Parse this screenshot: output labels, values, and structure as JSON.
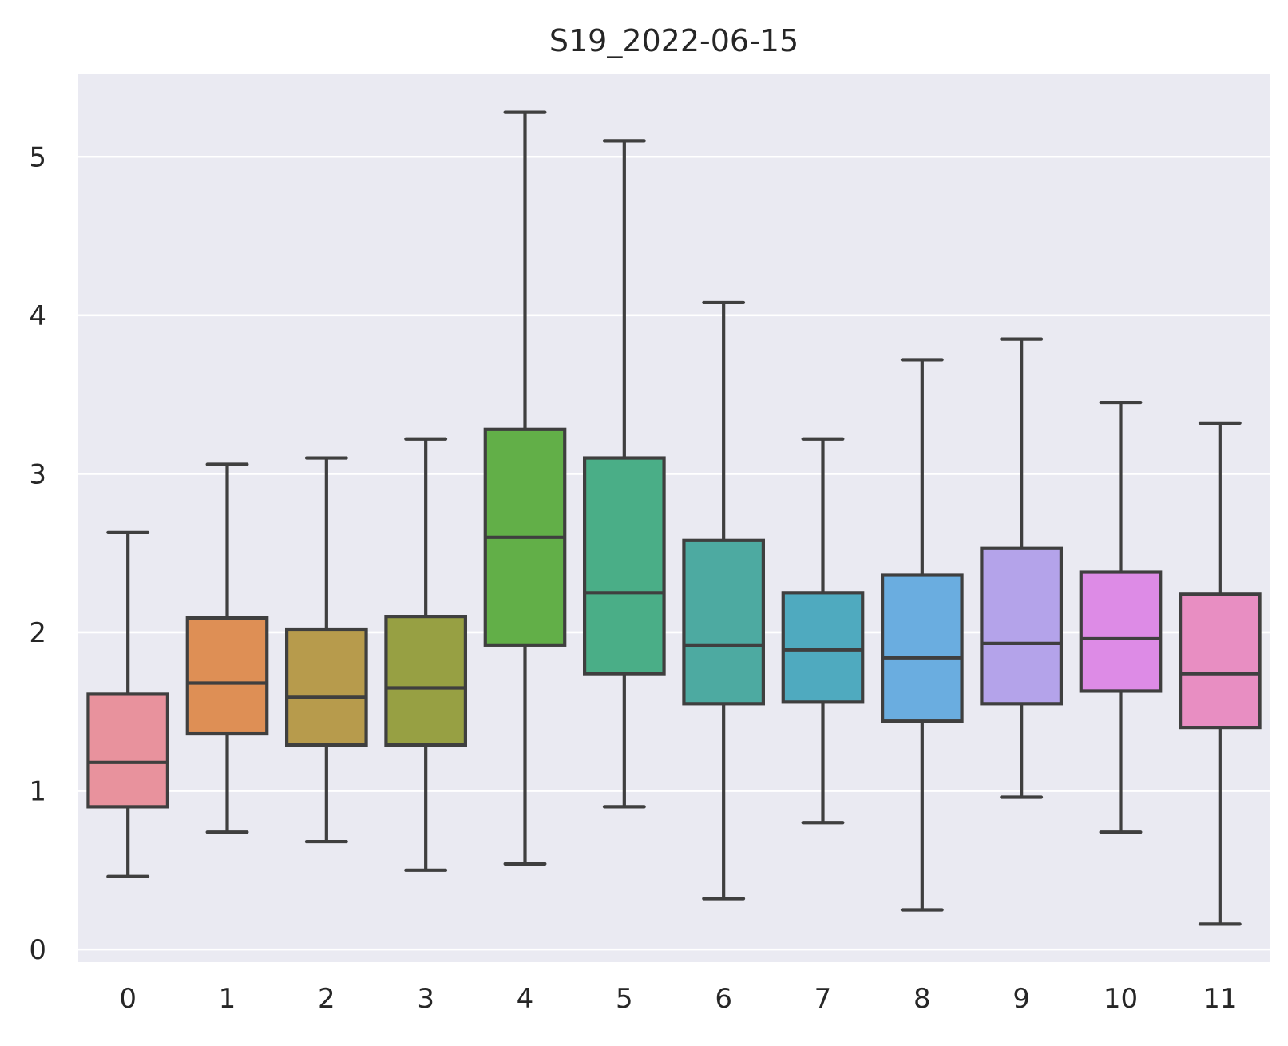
{
  "chart_data": {
    "type": "box",
    "title": "S19_2022-06-15",
    "xlabel": "",
    "ylabel": "",
    "categories": [
      "0",
      "1",
      "2",
      "3",
      "4",
      "5",
      "6",
      "7",
      "8",
      "9",
      "10",
      "11"
    ],
    "yticks": [
      "0",
      "1",
      "2",
      "3",
      "4",
      "5"
    ],
    "ylim": [
      -0.08,
      5.52
    ],
    "grid": true,
    "legend": "none",
    "background": "#EAEAF2",
    "line_color": "#3F3F3F",
    "boxes": [
      {
        "category": "0",
        "whisker_low": 0.46,
        "q1": 0.9,
        "median": 1.18,
        "q3": 1.61,
        "whisker_high": 2.63,
        "color": "#E8929D"
      },
      {
        "category": "1",
        "whisker_low": 0.74,
        "q1": 1.36,
        "median": 1.68,
        "q3": 2.09,
        "whisker_high": 3.06,
        "color": "#DE8F55"
      },
      {
        "category": "2",
        "whisker_low": 0.68,
        "q1": 1.29,
        "median": 1.59,
        "q3": 2.02,
        "whisker_high": 3.1,
        "color": "#B79B4C"
      },
      {
        "category": "3",
        "whisker_low": 0.5,
        "q1": 1.29,
        "median": 1.65,
        "q3": 2.1,
        "whisker_high": 3.22,
        "color": "#97A043"
      },
      {
        "category": "4",
        "whisker_low": 0.54,
        "q1": 1.92,
        "median": 2.6,
        "q3": 3.28,
        "whisker_high": 5.28,
        "color": "#62AF48"
      },
      {
        "category": "5",
        "whisker_low": 0.9,
        "q1": 1.74,
        "median": 2.25,
        "q3": 3.1,
        "whisker_high": 5.1,
        "color": "#4AAE87"
      },
      {
        "category": "6",
        "whisker_low": 0.32,
        "q1": 1.55,
        "median": 1.92,
        "q3": 2.58,
        "whisker_high": 4.08,
        "color": "#4DAAA1"
      },
      {
        "category": "7",
        "whisker_low": 0.8,
        "q1": 1.56,
        "median": 1.89,
        "q3": 2.25,
        "whisker_high": 3.22,
        "color": "#4FAABF"
      },
      {
        "category": "8",
        "whisker_low": 0.25,
        "q1": 1.44,
        "median": 1.84,
        "q3": 2.36,
        "whisker_high": 3.72,
        "color": "#6AADE0"
      },
      {
        "category": "9",
        "whisker_low": 0.96,
        "q1": 1.55,
        "median": 1.93,
        "q3": 2.53,
        "whisker_high": 3.85,
        "color": "#B4A3EA"
      },
      {
        "category": "10",
        "whisker_low": 0.74,
        "q1": 1.63,
        "median": 1.96,
        "q3": 2.38,
        "whisker_high": 3.45,
        "color": "#DD8BE6"
      },
      {
        "category": "11",
        "whisker_low": 0.16,
        "q1": 1.4,
        "median": 1.74,
        "q3": 2.24,
        "whisker_high": 3.32,
        "color": "#E88EC2"
      }
    ]
  }
}
